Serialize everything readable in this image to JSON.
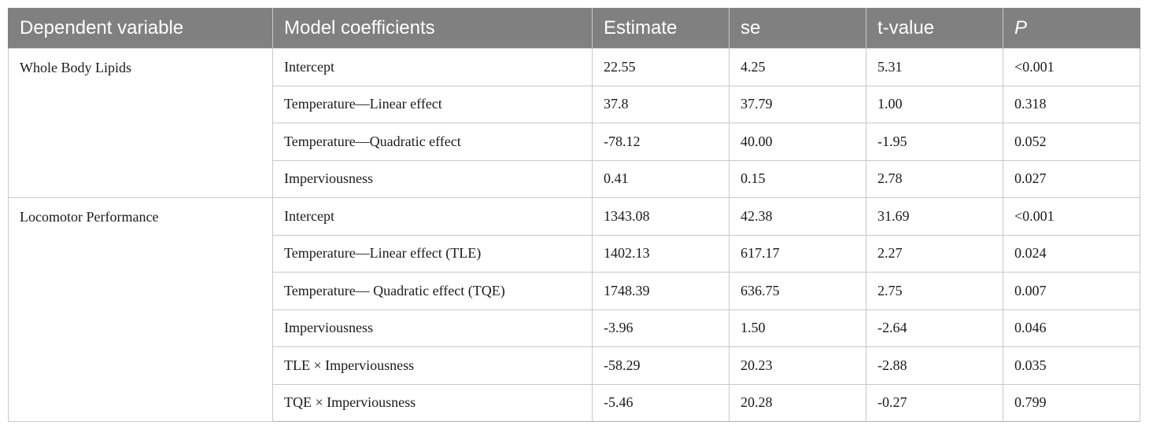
{
  "table": {
    "headers": [
      "Dependent variable",
      "Model coefficients",
      "Estimate",
      "se",
      "t-value",
      "P"
    ],
    "groups": [
      {
        "name": "Whole Body Lipids",
        "rows": [
          {
            "coef": "Intercept",
            "estimate": "22.55",
            "se": "4.25",
            "t": "5.31",
            "p": "<0.001"
          },
          {
            "coef": "Temperature—Linear effect",
            "estimate": "37.8",
            "se": "37.79",
            "t": "1.00",
            "p": "0.318"
          },
          {
            "coef": "Temperature—Quadratic effect",
            "estimate": "-78.12",
            "se": "40.00",
            "t": "-1.95",
            "p": "0.052"
          },
          {
            "coef": "Imperviousness",
            "estimate": "0.41",
            "se": "0.15",
            "t": "2.78",
            "p": "0.027"
          }
        ]
      },
      {
        "name": "Locomotor Performance",
        "rows": [
          {
            "coef": "Intercept",
            "estimate": "1343.08",
            "se": "42.38",
            "t": "31.69",
            "p": "<0.001"
          },
          {
            "coef": "Temperature—Linear effect (TLE)",
            "estimate": "1402.13",
            "se": "617.17",
            "t": "2.27",
            "p": "0.024"
          },
          {
            "coef": "Temperature— Quadratic effect (TQE)",
            "estimate": "1748.39",
            "se": "636.75",
            "t": "2.75",
            "p": "0.007"
          },
          {
            "coef": "Imperviousness",
            "estimate": "-3.96",
            "se": "1.50",
            "t": "-2.64",
            "p": "0.046"
          },
          {
            "coef": "TLE × Imperviousness",
            "estimate": "-58.29",
            "se": "20.23",
            "t": "-2.88",
            "p": "0.035"
          },
          {
            "coef": "TQE × Imperviousness",
            "estimate": "-5.46",
            "se": "20.28",
            "t": "-0.27",
            "p": "0.799"
          }
        ]
      }
    ]
  }
}
